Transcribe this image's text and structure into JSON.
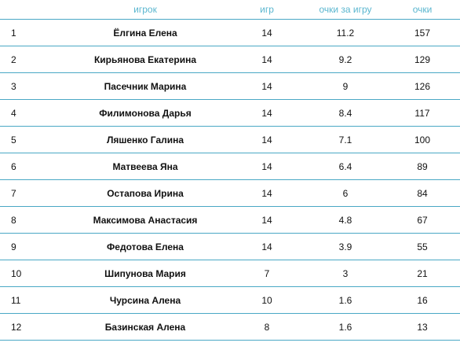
{
  "table": {
    "headers": {
      "rank": "",
      "player": "игрок",
      "games": "игр",
      "points_per_game": "очки за игру",
      "points": "очки"
    },
    "rows": [
      {
        "rank": "1",
        "player": "Ёлгина Елена",
        "games": "14",
        "points_per_game": "11.2",
        "points": "157"
      },
      {
        "rank": "2",
        "player": "Кирьянова Екатерина",
        "games": "14",
        "points_per_game": "9.2",
        "points": "129"
      },
      {
        "rank": "3",
        "player": "Пасечник Марина",
        "games": "14",
        "points_per_game": "9",
        "points": "126"
      },
      {
        "rank": "4",
        "player": "Филимонова Дарья",
        "games": "14",
        "points_per_game": "8.4",
        "points": "117"
      },
      {
        "rank": "5",
        "player": "Ляшенко Галина",
        "games": "14",
        "points_per_game": "7.1",
        "points": "100"
      },
      {
        "rank": "6",
        "player": "Матвеева Яна",
        "games": "14",
        "points_per_game": "6.4",
        "points": "89"
      },
      {
        "rank": "7",
        "player": "Остапова Ирина",
        "games": "14",
        "points_per_game": "6",
        "points": "84"
      },
      {
        "rank": "8",
        "player": "Максимова Анастасия",
        "games": "14",
        "points_per_game": "4.8",
        "points": "67"
      },
      {
        "rank": "9",
        "player": "Федотова Елена",
        "games": "14",
        "points_per_game": "3.9",
        "points": "55"
      },
      {
        "rank": "10",
        "player": "Шипунова Мария",
        "games": "7",
        "points_per_game": "3",
        "points": "21"
      },
      {
        "rank": "11",
        "player": "Чурсина Алена",
        "games": "10",
        "points_per_game": "1.6",
        "points": "16"
      },
      {
        "rank": "12",
        "player": "Базинская Алена",
        "games": "8",
        "points_per_game": "1.6",
        "points": "13"
      }
    ]
  },
  "colors": {
    "header_text": "#5ab6cf",
    "row_border": "#4aa8c5",
    "body_text": "#111111"
  }
}
